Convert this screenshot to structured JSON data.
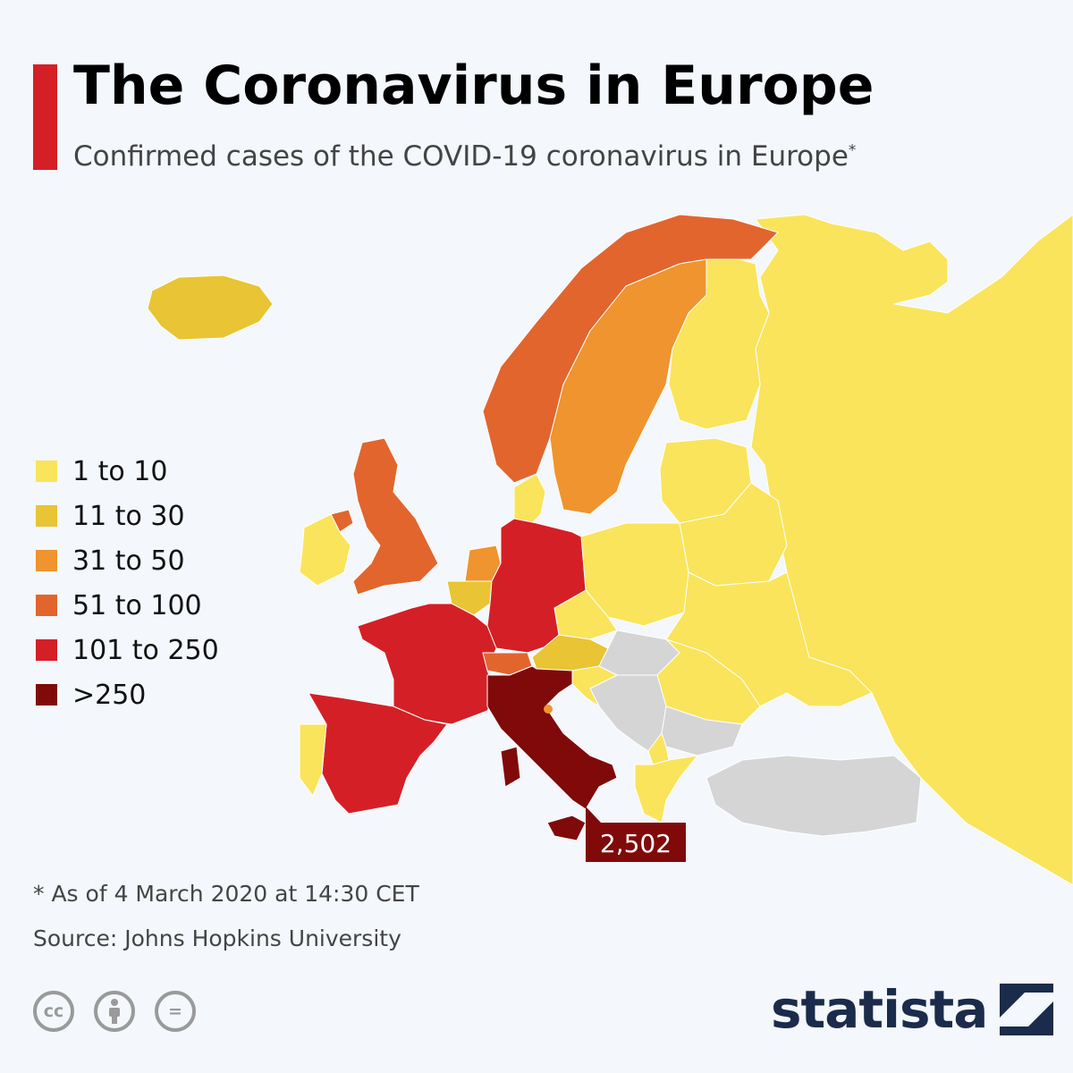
{
  "header": {
    "title": "The Coronavirus in Europe",
    "subtitle": "Confirmed cases of the COVID-19 coronavirus in Europe",
    "subtitle_mark": "*",
    "accent_color": "#d51f26"
  },
  "legend": [
    {
      "label": "1 to 10",
      "color": "#f9e45c"
    },
    {
      "label": "11 to 30",
      "color": "#e9c434"
    },
    {
      "label": "31 to 50",
      "color": "#ef942e"
    },
    {
      "label": "51 to 100",
      "color": "#e2652e"
    },
    {
      "label": "101 to 250",
      "color": "#d51f26"
    },
    {
      "label": ">250",
      "color": "#800a0a"
    }
  ],
  "no_data_color": "#d5d5d5",
  "callout": {
    "country": "Italy",
    "value": "2,502"
  },
  "map_regions": [
    {
      "name": "Iceland",
      "category": "11 to 30"
    },
    {
      "name": "Ireland",
      "category": "1 to 10"
    },
    {
      "name": "United Kingdom",
      "category": "51 to 100"
    },
    {
      "name": "Norway",
      "category": "51 to 100"
    },
    {
      "name": "Sweden",
      "category": "31 to 50"
    },
    {
      "name": "Finland",
      "category": "1 to 10"
    },
    {
      "name": "Denmark",
      "category": "1 to 10"
    },
    {
      "name": "Netherlands",
      "category": "31 to 50"
    },
    {
      "name": "Belgium",
      "category": "11 to 30"
    },
    {
      "name": "France",
      "category": "101 to 250"
    },
    {
      "name": "Spain",
      "category": "101 to 250"
    },
    {
      "name": "Portugal",
      "category": "1 to 10"
    },
    {
      "name": "Germany",
      "category": "101 to 250"
    },
    {
      "name": "Switzerland",
      "category": "51 to 100"
    },
    {
      "name": "Austria",
      "category": "11 to 30"
    },
    {
      "name": "Italy",
      "category": ">250"
    },
    {
      "name": "Czech Republic",
      "category": "1 to 10"
    },
    {
      "name": "Poland",
      "category": "1 to 10"
    },
    {
      "name": "Baltic states",
      "category": "1 to 10"
    },
    {
      "name": "Belarus",
      "category": "1 to 10"
    },
    {
      "name": "Ukraine",
      "category": "1 to 10"
    },
    {
      "name": "Romania",
      "category": "1 to 10"
    },
    {
      "name": "Russia",
      "category": "1 to 10"
    },
    {
      "name": "Croatia",
      "category": "1 to 10"
    },
    {
      "name": "North Macedonia",
      "category": "1 to 10"
    },
    {
      "name": "Greece",
      "category": "1 to 10"
    },
    {
      "name": "Hungary",
      "category": "no data"
    },
    {
      "name": "Balkans",
      "category": "no data"
    },
    {
      "name": "Bulgaria",
      "category": "no data"
    },
    {
      "name": "Turkey",
      "category": "no data"
    }
  ],
  "footer": {
    "note": "* As of 4 March 2020 at 14:30 CET",
    "source": "Source: Johns Hopkins University",
    "brand": "statista"
  },
  "license_icons": [
    "cc-icon",
    "attribution-icon",
    "no-derivatives-icon"
  ],
  "license_glyphs": {
    "cc": "cc",
    "nd": "="
  }
}
